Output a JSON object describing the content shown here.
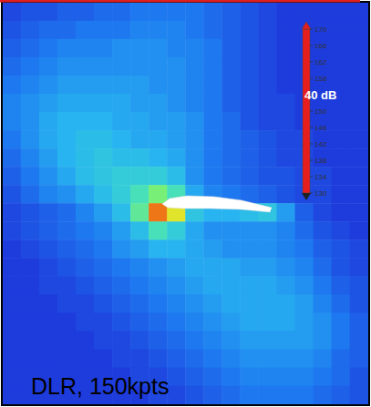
{
  "chart_data": {
    "type": "heatmap",
    "annotation": "DLR, 150kpts",
    "tick_labels": false,
    "colorbar": {
      "range": [
        130,
        170
      ],
      "ticks": [
        130,
        134,
        138,
        142,
        146,
        150,
        {
          "value": 154,
          "label": "40 dB"
        },
        158,
        162,
        166,
        170
      ]
    },
    "values": [
      [
        131,
        132,
        132,
        133,
        133,
        134,
        134,
        135,
        135,
        135,
        135,
        134,
        133,
        132,
        131,
        130,
        130,
        130,
        130,
        130
      ],
      [
        132,
        133,
        134,
        134,
        135,
        135,
        135,
        136,
        136,
        136,
        135,
        134,
        133,
        132,
        131,
        130,
        130,
        130,
        130,
        130
      ],
      [
        133,
        134,
        135,
        136,
        136,
        136,
        137,
        137,
        137,
        136,
        136,
        135,
        133,
        132,
        131,
        130,
        130,
        130,
        130,
        130
      ],
      [
        134,
        135,
        136,
        137,
        137,
        137,
        137,
        137,
        137,
        137,
        136,
        135,
        133,
        132,
        131,
        130,
        130,
        130,
        130,
        130
      ],
      [
        135,
        136,
        137,
        138,
        138,
        138,
        138,
        138,
        137,
        137,
        136,
        135,
        133,
        132,
        131,
        130,
        130,
        130,
        130,
        130
      ],
      [
        136,
        137,
        138,
        139,
        139,
        139,
        139,
        138,
        138,
        137,
        136,
        135,
        133,
        132,
        131,
        131,
        130,
        130,
        130,
        130
      ],
      [
        136,
        137,
        139,
        140,
        140,
        140,
        139,
        139,
        138,
        138,
        137,
        135,
        134,
        132,
        131,
        131,
        130,
        130,
        130,
        130
      ],
      [
        135,
        137,
        139,
        140,
        141,
        141,
        140,
        139,
        139,
        138,
        137,
        135,
        134,
        133,
        132,
        131,
        131,
        130,
        130,
        130
      ],
      [
        134,
        136,
        138,
        140,
        141,
        142,
        141,
        141,
        140,
        139,
        137,
        135,
        134,
        133,
        132,
        131,
        131,
        130,
        130,
        130
      ],
      [
        133,
        135,
        137,
        139,
        141,
        142,
        143,
        143,
        143,
        141,
        137,
        135,
        134,
        133,
        132,
        132,
        131,
        131,
        130,
        130
      ],
      [
        132,
        134,
        136,
        137,
        139,
        141,
        143,
        146,
        150,
        146,
        139,
        136,
        135,
        134,
        133,
        132,
        131,
        131,
        130,
        130
      ],
      [
        131,
        132,
        133,
        134,
        136,
        138,
        141,
        148,
        166,
        158,
        142,
        140,
        140,
        141,
        142,
        138,
        133,
        131,
        130,
        130
      ],
      [
        131,
        132,
        133,
        134,
        135,
        136,
        138,
        141,
        146,
        143,
        139,
        137,
        137,
        137,
        137,
        136,
        134,
        132,
        131,
        130
      ],
      [
        130,
        131,
        132,
        133,
        134,
        135,
        137,
        138,
        140,
        140,
        139,
        138,
        137,
        137,
        137,
        136,
        135,
        133,
        132,
        131
      ],
      [
        130,
        130,
        131,
        132,
        133,
        134,
        135,
        136,
        137,
        138,
        139,
        139,
        139,
        138,
        138,
        137,
        136,
        134,
        132,
        131
      ],
      [
        130,
        130,
        131,
        131,
        132,
        133,
        134,
        135,
        136,
        137,
        138,
        139,
        139,
        139,
        139,
        138,
        137,
        135,
        133,
        132
      ],
      [
        130,
        130,
        130,
        131,
        131,
        132,
        133,
        134,
        135,
        136,
        137,
        138,
        139,
        139,
        139,
        139,
        138,
        136,
        134,
        132
      ],
      [
        130,
        130,
        130,
        130,
        131,
        131,
        132,
        133,
        134,
        135,
        136,
        137,
        138,
        139,
        139,
        139,
        138,
        137,
        135,
        133
      ],
      [
        130,
        130,
        130,
        130,
        130,
        131,
        131,
        132,
        133,
        134,
        135,
        136,
        137,
        138,
        138,
        138,
        138,
        137,
        135,
        133
      ],
      [
        130,
        130,
        130,
        130,
        130,
        130,
        131,
        131,
        132,
        133,
        134,
        135,
        136,
        137,
        137,
        137,
        137,
        136,
        134,
        133
      ],
      [
        130,
        130,
        130,
        130,
        130,
        130,
        130,
        131,
        131,
        132,
        133,
        134,
        135,
        136,
        136,
        136,
        136,
        135,
        134,
        132
      ],
      [
        130,
        130,
        130,
        130,
        130,
        130,
        130,
        130,
        131,
        131,
        132,
        133,
        134,
        135,
        135,
        135,
        135,
        134,
        133,
        132
      ]
    ]
  }
}
